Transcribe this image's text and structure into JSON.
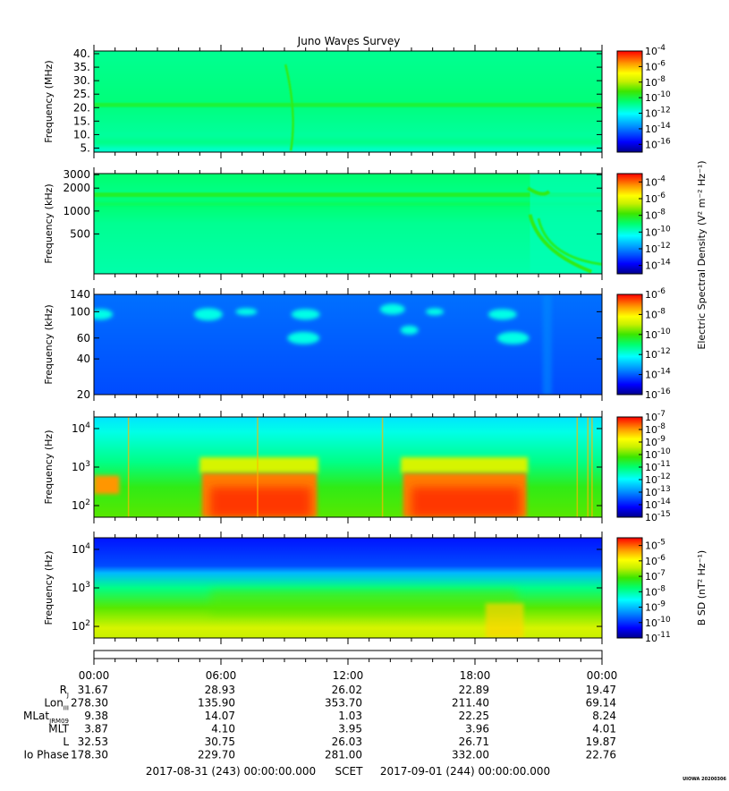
{
  "title": "Juno Waves Survey",
  "credit": "UIOWA 20200306",
  "chart_data": [
    {
      "type": "heatmap",
      "panel": 1,
      "ylabel": "Frequency (MHz)",
      "y_scale": "linear",
      "ylim": [
        3.5,
        41
      ],
      "y_ticks": [
        5,
        10,
        15,
        20,
        25,
        30,
        35,
        40
      ],
      "y_tick_labels": [
        "5.",
        "10.",
        "15.",
        "20.",
        "25.",
        "30.",
        "35.",
        "40."
      ],
      "colorbar": {
        "scale": "log",
        "range_exp": [
          -17,
          -4
        ],
        "tick_exp": [
          -4,
          -6,
          -8,
          -10,
          -12,
          -14,
          -16
        ]
      },
      "features": "uniform ~1e-12 background, bright band near 21 MHz, short arc near 09:30"
    },
    {
      "type": "heatmap",
      "panel": 2,
      "ylabel": "Frequency (kHz)",
      "y_scale": "log",
      "ylim": [
        150,
        3100
      ],
      "y_ticks": [
        500,
        1000,
        2000,
        3000
      ],
      "y_tick_labels": [
        "500",
        "1000",
        "2000",
        "3000"
      ],
      "colorbar": {
        "scale": "log",
        "range_exp": [
          -15,
          -3
        ],
        "tick_exp": [
          -4,
          -6,
          -8,
          -10,
          -12,
          -14
        ]
      },
      "features": "banded ~1e-12 background, strong emission arc after 20:30"
    },
    {
      "type": "heatmap",
      "panel": 3,
      "ylabel": "Frequency (kHz)",
      "y_scale": "log",
      "ylim": [
        20,
        140
      ],
      "y_ticks": [
        20,
        40,
        60,
        100,
        140
      ],
      "y_tick_labels": [
        "20",
        "40",
        "60",
        "100",
        "140"
      ],
      "colorbar": {
        "scale": "log",
        "range_exp": [
          -16,
          -6
        ],
        "tick_exp": [
          -6,
          -8,
          -10,
          -12,
          -14,
          -16
        ],
        "label": "Electric Spectral Density (V² m⁻² Hz⁻¹)"
      },
      "features": "low ~1e-14 background with isolated blobs near 01:00, 05:30, 10:00, 14:30, 19:30"
    },
    {
      "type": "heatmap",
      "panel": 4,
      "ylabel": "Frequency (Hz)",
      "y_scale": "log",
      "ylim": [
        50,
        20000
      ],
      "y_ticks": [
        100,
        1000,
        10000
      ],
      "y_tick_exp": [
        2,
        3,
        4
      ],
      "colorbar": {
        "scale": "log",
        "range_exp": [
          -15,
          -7
        ],
        "tick_exp": [
          -7,
          -8,
          -9,
          -10,
          -11,
          -12,
          -13,
          -14,
          -15
        ]
      },
      "features": "intense low-frequency emission 05:00–10:30 and 14:30–20:30"
    },
    {
      "type": "heatmap",
      "panel": 5,
      "ylabel": "Frequency (Hz)",
      "y_scale": "log",
      "ylim": [
        50,
        20000
      ],
      "y_ticks": [
        100,
        1000,
        10000
      ],
      "y_tick_exp": [
        2,
        3,
        4
      ],
      "colorbar": {
        "scale": "log",
        "range_exp": [
          -11,
          -4.5
        ],
        "tick_exp": [
          -5,
          -6,
          -7,
          -8,
          -9,
          -10,
          -11
        ],
        "label": "B SD (nT² Hz⁻¹)"
      },
      "features": "magnetic spectral density; dark blue above 2 kHz, yellow/green below 1 kHz"
    }
  ],
  "x_axis": {
    "ticks_hours": [
      0,
      6,
      12,
      18,
      24
    ],
    "tick_labels": [
      "00:00",
      "06:00",
      "12:00",
      "18:00",
      "00:00"
    ],
    "start_label": "2017-08-31 (243) 00:00:00.000",
    "scet_label": "SCET",
    "end_label": "2017-09-01 (244) 00:00:00.000"
  },
  "ephemeris": [
    {
      "name": "R",
      "sub": "J",
      "values": [
        "31.67",
        "28.93",
        "26.02",
        "22.89",
        "19.47"
      ]
    },
    {
      "name": "Lon",
      "sub": "III",
      "values": [
        "278.30",
        "135.90",
        "353.70",
        "211.40",
        "69.14"
      ]
    },
    {
      "name": "MLat",
      "sub": "JRM09",
      "values": [
        "9.38",
        "14.07",
        "1.03",
        "22.25",
        "8.24"
      ]
    },
    {
      "name": "MLT",
      "sub": "",
      "values": [
        "3.87",
        "4.10",
        "3.95",
        "3.96",
        "4.01"
      ]
    },
    {
      "name": "L",
      "sub": "",
      "values": [
        "32.53",
        "30.75",
        "26.03",
        "26.71",
        "19.87"
      ]
    },
    {
      "name": "Io Phase",
      "sub": "",
      "values": [
        "178.30",
        "229.70",
        "281.00",
        "332.00",
        "22.76"
      ]
    }
  ]
}
